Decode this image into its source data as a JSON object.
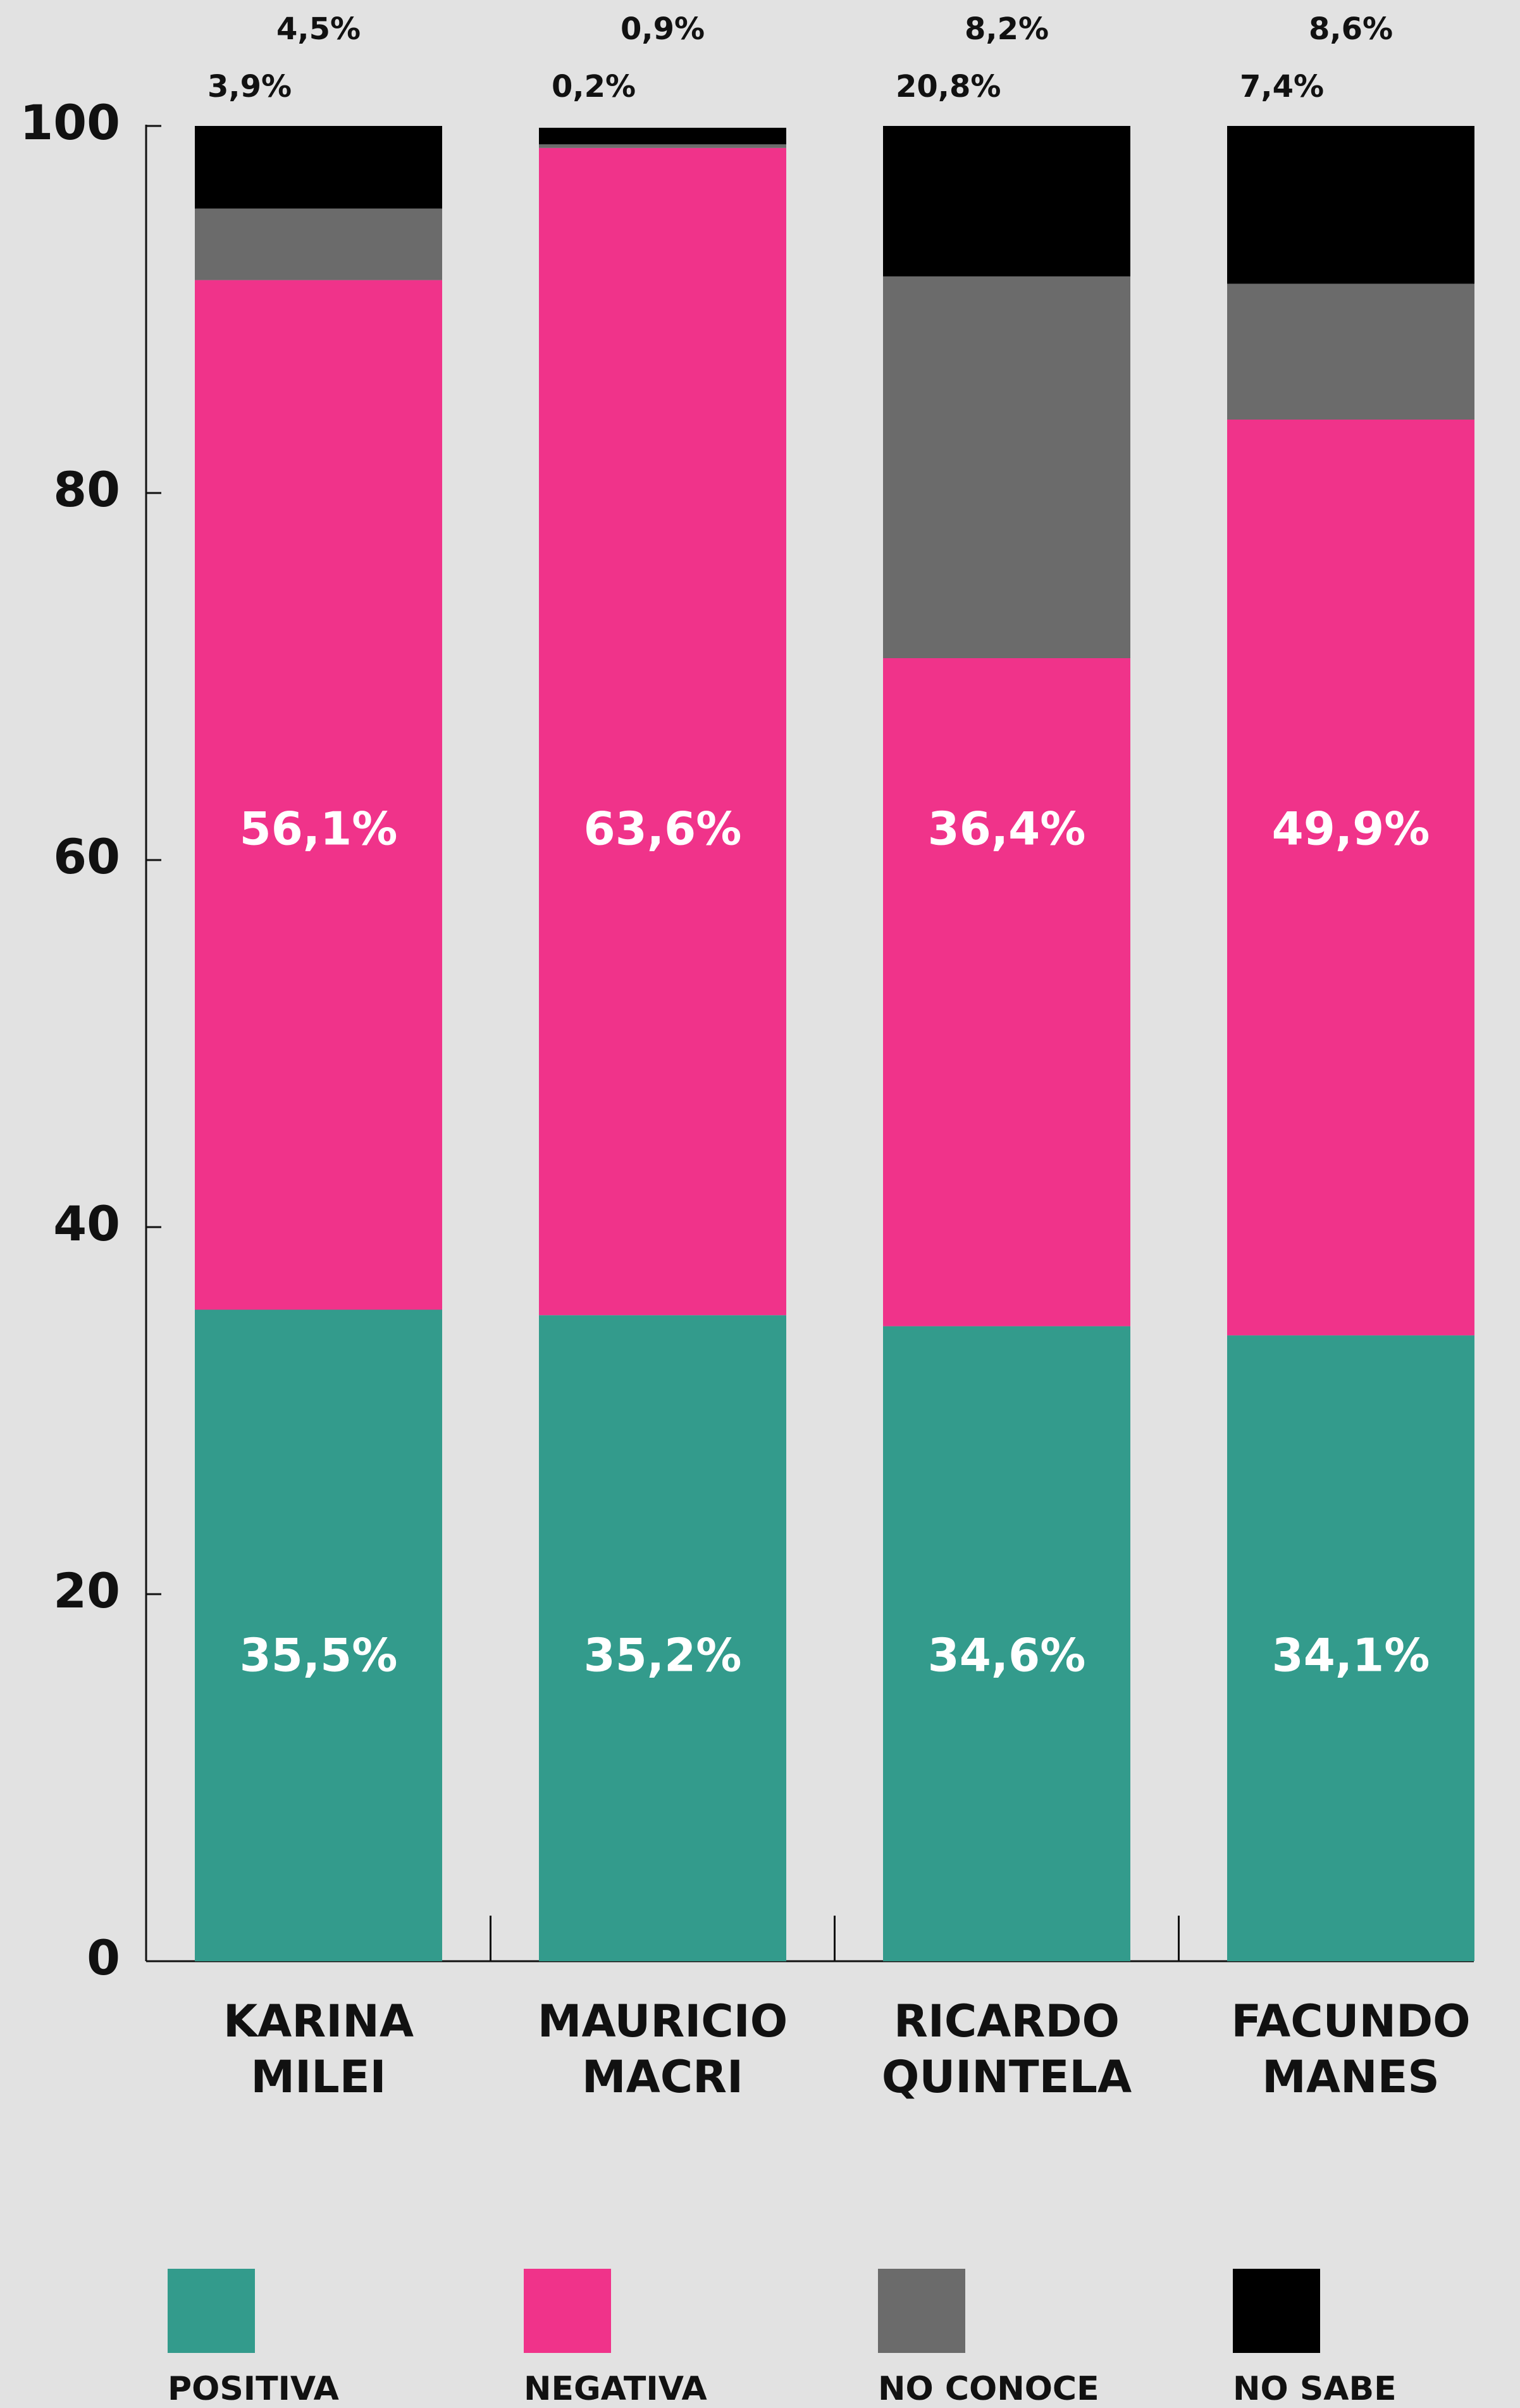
{
  "chart_data": {
    "type": "stacked-bar",
    "categories": [
      "KARINA MILEI",
      "MAURICIO MACRI",
      "RICARDO QUINTELA",
      "FACUNDO MANES"
    ],
    "series": [
      {
        "name": "POSITIVA",
        "color": "#339b8c",
        "values": [
          35.5,
          35.2,
          34.6,
          34.1
        ],
        "value_labels": [
          "35,5%",
          "35,2%",
          "34,6%",
          "34,1%"
        ]
      },
      {
        "name": "NEGATIVA",
        "color": "#f0338a",
        "values": [
          56.1,
          63.6,
          36.4,
          49.9
        ],
        "value_labels": [
          "56,1%",
          "63,6%",
          "36,4%",
          "49,9%"
        ]
      },
      {
        "name": "NO CONOCE",
        "color": "#6b6b6b",
        "values": [
          3.9,
          0.2,
          20.8,
          7.4
        ],
        "value_labels": [
          "3,9%",
          "0,2%",
          "20,8%",
          "7,4%"
        ]
      },
      {
        "name": "NO SABE",
        "color": "#000000",
        "values": [
          4.5,
          0.9,
          8.2,
          8.6
        ],
        "value_labels": [
          "4,5%",
          "0,9%",
          "8,2%",
          "8,6%"
        ]
      }
    ],
    "ylim": [
      0,
      100
    ],
    "yticks": [
      0,
      20,
      40,
      60,
      80,
      100
    ]
  }
}
